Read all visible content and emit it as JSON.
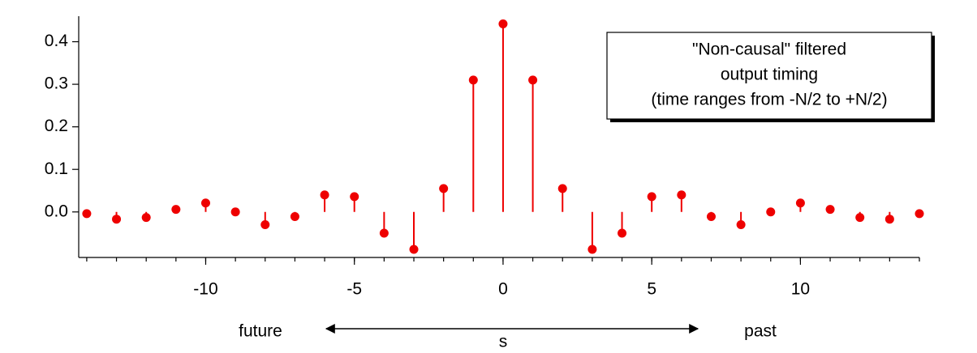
{
  "chart_data": {
    "type": "stem",
    "annotation": [
      "\"Non-causal\" filtered",
      "output timing",
      "(time ranges from -N/2 to +N/2)"
    ],
    "left_label": "future",
    "right_label": "past",
    "axis_label": "s",
    "color": "#ee0000",
    "x": [
      -14,
      -13,
      -12,
      -11,
      -10,
      -9,
      -8,
      -7,
      -6,
      -5,
      -4,
      -3,
      -2,
      -1,
      0,
      1,
      2,
      3,
      4,
      5,
      6,
      7,
      8,
      9,
      10,
      11,
      12,
      13,
      14
    ],
    "values": [
      -0.004,
      -0.017,
      -0.013,
      0.006,
      0.021,
      0.0,
      -0.03,
      -0.011,
      0.04,
      0.036,
      -0.05,
      -0.088,
      0.055,
      0.31,
      0.442,
      0.31,
      0.055,
      -0.088,
      -0.05,
      0.036,
      0.04,
      -0.011,
      -0.03,
      0.0,
      0.021,
      0.006,
      -0.013,
      -0.017,
      -0.004
    ],
    "xlim": [
      -14.27,
      14.0
    ],
    "xticks": [
      -10,
      -5,
      0,
      5,
      10
    ],
    "xminorticks": [
      -14,
      -13,
      -12,
      -11,
      -10,
      -9,
      -8,
      -7,
      -6,
      -5,
      -4,
      -3,
      -2,
      -1,
      0,
      1,
      2,
      3,
      4,
      5,
      6,
      7,
      8,
      9,
      10,
      11,
      12,
      13,
      14
    ],
    "ylim": [
      -0.107,
      0.46
    ],
    "yticks": [
      {
        "value": 0,
        "label": "0.0"
      },
      0.1,
      0.2,
      0.3,
      0.4
    ]
  }
}
